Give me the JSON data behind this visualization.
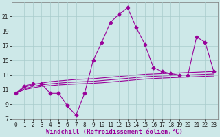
{
  "xlabel": "Windchill (Refroidissement éolien,°C)",
  "background_color": "#cde8e8",
  "grid_color": "#a8cccc",
  "line_color": "#990099",
  "x_values": [
    0,
    1,
    2,
    3,
    4,
    5,
    6,
    7,
    8,
    9,
    10,
    11,
    12,
    13,
    14,
    15,
    16,
    17,
    18,
    19,
    20,
    21,
    22,
    23
  ],
  "y_main": [
    10.5,
    11.5,
    11.8,
    11.8,
    10.5,
    10.5,
    8.8,
    7.5,
    10.5,
    15.0,
    17.5,
    20.2,
    21.3,
    22.2,
    19.5,
    17.2,
    14.0,
    13.5,
    13.2,
    13.0,
    13.0,
    18.2,
    17.5,
    13.5
  ],
  "y_smooth1": [
    10.5,
    11.3,
    11.7,
    11.9,
    12.1,
    12.2,
    12.3,
    12.4,
    12.45,
    12.5,
    12.6,
    12.7,
    12.8,
    12.9,
    13.0,
    13.1,
    13.15,
    13.2,
    13.25,
    13.3,
    13.35,
    13.4,
    13.45,
    13.5
  ],
  "y_smooth2": [
    10.5,
    11.1,
    11.45,
    11.65,
    11.8,
    11.9,
    12.0,
    12.05,
    12.1,
    12.15,
    12.25,
    12.35,
    12.45,
    12.55,
    12.65,
    12.75,
    12.82,
    12.88,
    12.93,
    12.97,
    13.0,
    13.05,
    13.1,
    13.15
  ],
  "y_smooth3": [
    10.5,
    11.0,
    11.25,
    11.45,
    11.55,
    11.65,
    11.72,
    11.78,
    11.83,
    11.88,
    11.95,
    12.05,
    12.15,
    12.25,
    12.35,
    12.45,
    12.52,
    12.58,
    12.63,
    12.68,
    12.72,
    12.77,
    12.82,
    12.87
  ],
  "ylim": [
    7,
    23
  ],
  "xlim": [
    -0.5,
    23.5
  ],
  "yticks": [
    7,
    9,
    11,
    13,
    15,
    17,
    19,
    21
  ],
  "xticks": [
    0,
    1,
    2,
    3,
    4,
    5,
    6,
    7,
    8,
    9,
    10,
    11,
    12,
    13,
    14,
    15,
    16,
    17,
    18,
    19,
    20,
    21,
    22,
    23
  ],
  "marker": "D",
  "marker_size": 2.5,
  "line_width": 0.8,
  "tick_fontsize": 5.5,
  "xlabel_fontsize": 6.5
}
